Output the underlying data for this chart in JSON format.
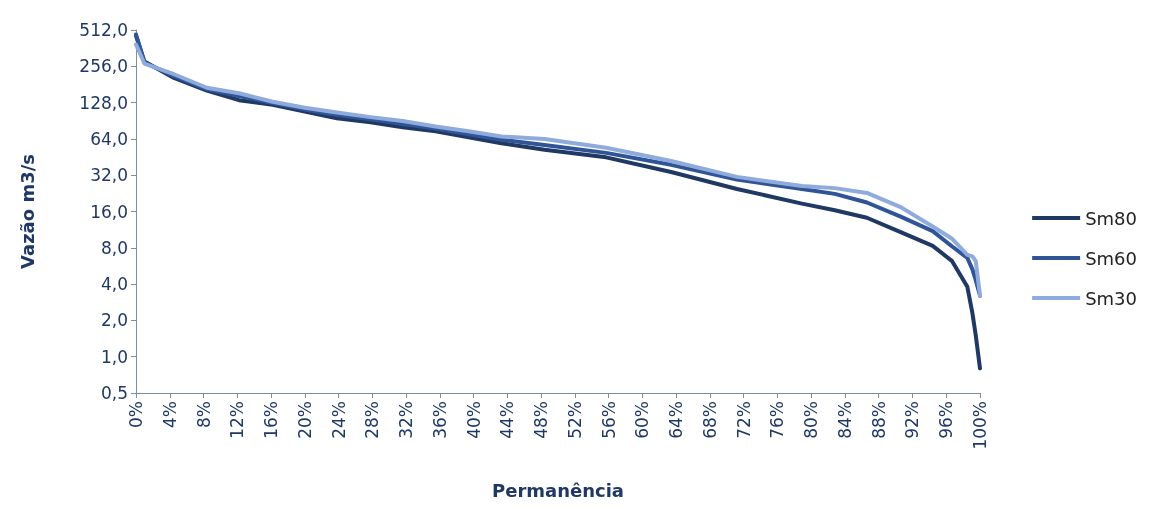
{
  "chart_data": {
    "type": "line",
    "xlabel": "Permanência",
    "ylabel": "Vazão m3/s",
    "log": "y",
    "grid": false,
    "legend": "right",
    "marker": "none",
    "line_style": "solid",
    "x": [
      0,
      1,
      4.5,
      8.4,
      12.2,
      16.2,
      20,
      23.8,
      27.8,
      31.6,
      35.5,
      39.4,
      43.3,
      48.4,
      55.7,
      63.4,
      71.2,
      78.9,
      82.8,
      86.6,
      90.6,
      94.4,
      96.7,
      98.5,
      99.1,
      99.5,
      100
    ],
    "xlim": [
      0,
      100
    ],
    "xticks": [
      {
        "value": 0,
        "label": "0%"
      },
      {
        "value": 4,
        "label": "4%"
      },
      {
        "value": 8,
        "label": "8%"
      },
      {
        "value": 12,
        "label": "12%"
      },
      {
        "value": 16,
        "label": "16%"
      },
      {
        "value": 20,
        "label": "20%"
      },
      {
        "value": 24,
        "label": "24%"
      },
      {
        "value": 28,
        "label": "28%"
      },
      {
        "value": 32,
        "label": "32%"
      },
      {
        "value": 36,
        "label": "36%"
      },
      {
        "value": 40,
        "label": "40%"
      },
      {
        "value": 44,
        "label": "44%"
      },
      {
        "value": 48,
        "label": "48%"
      },
      {
        "value": 52,
        "label": "52%"
      },
      {
        "value": 56,
        "label": "56%"
      },
      {
        "value": 60,
        "label": "60%"
      },
      {
        "value": 64,
        "label": "64%"
      },
      {
        "value": 68,
        "label": "68%"
      },
      {
        "value": 72,
        "label": "72%"
      },
      {
        "value": 76,
        "label": "76%"
      },
      {
        "value": 80,
        "label": "80%"
      },
      {
        "value": 84,
        "label": "84%"
      },
      {
        "value": 88,
        "label": "88%"
      },
      {
        "value": 92,
        "label": "92%"
      },
      {
        "value": 96,
        "label": "96%"
      },
      {
        "value": 100,
        "label": "100%"
      }
    ],
    "ylim": [
      0.5,
      512
    ],
    "yticks": [
      {
        "value": 0.5,
        "label": "0,5"
      },
      {
        "value": 1,
        "label": "1,0"
      },
      {
        "value": 2,
        "label": "2,0"
      },
      {
        "value": 4,
        "label": "4,0"
      },
      {
        "value": 8,
        "label": "8,0"
      },
      {
        "value": 16,
        "label": "16,0"
      },
      {
        "value": 32,
        "label": "32,0"
      },
      {
        "value": 64,
        "label": "64,0"
      },
      {
        "value": 128,
        "label": "128,0"
      },
      {
        "value": 256,
        "label": "256,0"
      },
      {
        "value": 512,
        "label": "512,0"
      }
    ],
    "series": [
      {
        "name": "Sm80",
        "color": "#1f3864",
        "values": [
          460,
          280,
          205,
          161,
          134,
          123,
          108,
          95,
          88,
          80,
          74,
          66,
          59,
          52,
          45,
          34,
          24.6,
          18.6,
          16.4,
          14.2,
          10.8,
          8.3,
          6.2,
          3.8,
          2.3,
          1.5,
          0.8
        ]
      },
      {
        "name": "Sm60",
        "color": "#2f5597",
        "values": [
          470,
          275,
          212,
          165,
          145,
          127,
          112,
          101,
          93,
          85,
          78,
          70,
          63,
          57,
          49,
          39,
          29.5,
          24.6,
          22.4,
          19,
          14.5,
          11,
          8.2,
          6.6,
          5.3,
          4.3,
          3.2
        ]
      },
      {
        "name": "Sm30",
        "color": "#8faadc",
        "values": [
          388,
          270,
          220,
          170,
          153,
          130,
          116,
          106,
          97,
          90,
          81,
          74,
          67,
          64,
          54,
          42,
          31,
          26,
          25,
          22.8,
          17.4,
          12,
          9.5,
          7,
          6.8,
          6.2,
          3.2
        ]
      }
    ]
  }
}
